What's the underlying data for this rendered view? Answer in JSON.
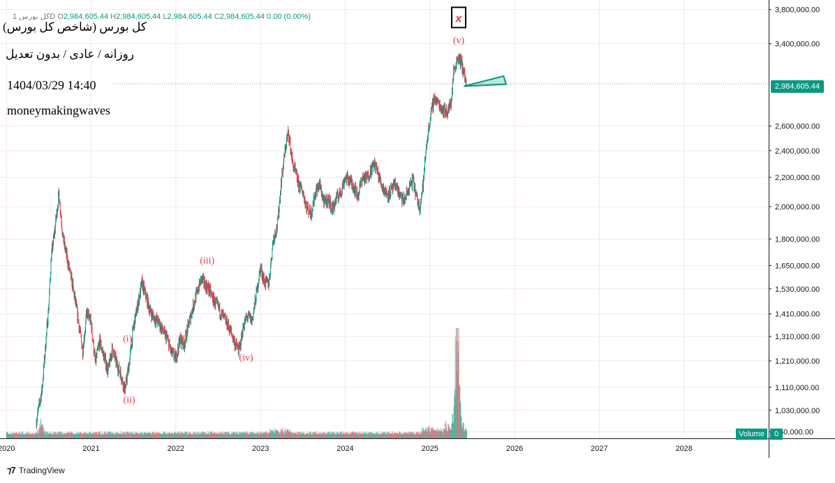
{
  "header": {
    "symbol": "کل بورس 1D",
    "o_label": "O",
    "o_value": "2,984,605.44",
    "h_label": "H",
    "h_value": "2,984,605.44",
    "l_label": "L",
    "l_value": "2,984,605.44",
    "c_label": "C",
    "c_value": "2,984,605.44",
    "change": "0.00 (0.00%)"
  },
  "overlay": {
    "title": "کل بورس (شاخص کل بورس)",
    "subtitle": "روزانه / عادی / بدون تعدیل",
    "datetime": "1404/03/29 14:40",
    "author": "moneymakingwaves"
  },
  "price_tag": "2,984,605.44",
  "volume_label": "Volume",
  "volume_value": "0",
  "footer": {
    "brand": "TradingView"
  },
  "colors": {
    "up": "#089981",
    "down": "#f23645",
    "wave_label": "#f23645",
    "triangle": "#089981"
  },
  "chart_data": {
    "type": "candlestick",
    "y_scale": "log",
    "ylim": [
      940000,
      3850000
    ],
    "y_ticks": [
      {
        "value": 3800000,
        "label": "3,800,000.00"
      },
      {
        "value": 3400000,
        "label": "3,400,000.00"
      },
      {
        "value": 2600000,
        "label": "2,600,000.00"
      },
      {
        "value": 2400000,
        "label": "2,400,000.00"
      },
      {
        "value": 2200000,
        "label": "2,200,000.00"
      },
      {
        "value": 2000000,
        "label": "2,000,000.00"
      },
      {
        "value": 1800000,
        "label": "1,800,000.00"
      },
      {
        "value": 1650000,
        "label": "1,650,000.00"
      },
      {
        "value": 1530000,
        "label": "1,530,000.00"
      },
      {
        "value": 1410000,
        "label": "1,410,000.00"
      },
      {
        "value": 1310000,
        "label": "1,310,000.00"
      },
      {
        "value": 1210000,
        "label": "1,210,000.00"
      },
      {
        "value": 1110000,
        "label": "1,110,000.00"
      },
      {
        "value": 1030000,
        "label": "1,030,000.00"
      },
      {
        "value": 960000,
        "label": "960,000.00"
      }
    ],
    "x_range": [
      2019.99,
      2029.0
    ],
    "x_ticks": [
      {
        "value": 2020.0,
        "label": "2020"
      },
      {
        "value": 2021.0,
        "label": "2021"
      },
      {
        "value": 2022.0,
        "label": "2022"
      },
      {
        "value": 2023.0,
        "label": "2023"
      },
      {
        "value": 2024.0,
        "label": "2024"
      },
      {
        "value": 2025.0,
        "label": "2025"
      },
      {
        "value": 2026.0,
        "label": "2026"
      },
      {
        "value": 2027.0,
        "label": "2027"
      },
      {
        "value": 2028.0,
        "label": "2028"
      }
    ],
    "last_price": 2984605.44,
    "price_path": [
      [
        2020.35,
        990000
      ],
      [
        2020.42,
        1100000
      ],
      [
        2020.5,
        1450000
      ],
      [
        2020.53,
        1700000
      ],
      [
        2020.57,
        1850000
      ],
      [
        2020.62,
        2090000
      ],
      [
        2020.67,
        1800000
      ],
      [
        2020.72,
        1680000
      ],
      [
        2020.78,
        1550000
      ],
      [
        2020.85,
        1380000
      ],
      [
        2020.9,
        1250000
      ],
      [
        2020.95,
        1420000
      ],
      [
        2021.0,
        1370000
      ],
      [
        2021.05,
        1200000
      ],
      [
        2021.1,
        1290000
      ],
      [
        2021.15,
        1230000
      ],
      [
        2021.2,
        1170000
      ],
      [
        2021.25,
        1260000
      ],
      [
        2021.3,
        1200000
      ],
      [
        2021.35,
        1160000
      ],
      [
        2021.4,
        1100000
      ],
      [
        2021.45,
        1200000
      ],
      [
        2021.5,
        1350000
      ],
      [
        2021.55,
        1450000
      ],
      [
        2021.6,
        1560000
      ],
      [
        2021.65,
        1490000
      ],
      [
        2021.7,
        1420000
      ],
      [
        2021.75,
        1390000
      ],
      [
        2021.8,
        1370000
      ],
      [
        2021.85,
        1330000
      ],
      [
        2021.9,
        1300000
      ],
      [
        2021.95,
        1240000
      ],
      [
        2022.0,
        1220000
      ],
      [
        2022.05,
        1300000
      ],
      [
        2022.1,
        1280000
      ],
      [
        2022.15,
        1360000
      ],
      [
        2022.2,
        1440000
      ],
      [
        2022.25,
        1510000
      ],
      [
        2022.3,
        1580000
      ],
      [
        2022.35,
        1550000
      ],
      [
        2022.4,
        1520000
      ],
      [
        2022.45,
        1470000
      ],
      [
        2022.5,
        1440000
      ],
      [
        2022.55,
        1400000
      ],
      [
        2022.6,
        1370000
      ],
      [
        2022.65,
        1330000
      ],
      [
        2022.7,
        1280000
      ],
      [
        2022.75,
        1250000
      ],
      [
        2022.8,
        1360000
      ],
      [
        2022.85,
        1400000
      ],
      [
        2022.9,
        1380000
      ],
      [
        2022.95,
        1500000
      ],
      [
        2023.0,
        1640000
      ],
      [
        2023.05,
        1560000
      ],
      [
        2023.1,
        1560000
      ],
      [
        2023.15,
        1800000
      ],
      [
        2023.2,
        1880000
      ],
      [
        2023.25,
        2200000
      ],
      [
        2023.3,
        2450000
      ],
      [
        2023.33,
        2550000
      ],
      [
        2023.38,
        2300000
      ],
      [
        2023.45,
        2150000
      ],
      [
        2023.5,
        2100000
      ],
      [
        2023.55,
        1990000
      ],
      [
        2023.6,
        1960000
      ],
      [
        2023.65,
        2100000
      ],
      [
        2023.7,
        2150000
      ],
      [
        2023.75,
        2020000
      ],
      [
        2023.8,
        2050000
      ],
      [
        2023.85,
        1980000
      ],
      [
        2023.9,
        2060000
      ],
      [
        2023.95,
        2100000
      ],
      [
        2024.0,
        2200000
      ],
      [
        2024.05,
        2180000
      ],
      [
        2024.1,
        2140000
      ],
      [
        2024.15,
        2070000
      ],
      [
        2024.2,
        2200000
      ],
      [
        2024.25,
        2190000
      ],
      [
        2024.3,
        2250000
      ],
      [
        2024.35,
        2300000
      ],
      [
        2024.4,
        2200000
      ],
      [
        2024.45,
        2120000
      ],
      [
        2024.5,
        2080000
      ],
      [
        2024.55,
        2110000
      ],
      [
        2024.6,
        2150000
      ],
      [
        2024.65,
        2060000
      ],
      [
        2024.7,
        2040000
      ],
      [
        2024.75,
        2120000
      ],
      [
        2024.8,
        2180000
      ],
      [
        2024.85,
        2040000
      ],
      [
        2024.88,
        2000000
      ],
      [
        2024.92,
        2150000
      ],
      [
        2024.96,
        2450000
      ],
      [
        2025.0,
        2650000
      ],
      [
        2025.05,
        2850000
      ],
      [
        2025.1,
        2800000
      ],
      [
        2025.15,
        2750000
      ],
      [
        2025.2,
        2720000
      ],
      [
        2025.25,
        2800000
      ],
      [
        2025.28,
        3100000
      ],
      [
        2025.33,
        3260000
      ],
      [
        2025.37,
        3200000
      ],
      [
        2025.4,
        3100000
      ],
      [
        2025.43,
        2985000
      ]
    ],
    "annotations": [
      {
        "label": "(i)",
        "x": 2021.43,
        "y": 1270000,
        "position": "above"
      },
      {
        "label": "(ii)",
        "x": 2021.45,
        "y": 1090000,
        "position": "below"
      },
      {
        "label": "(iii)",
        "x": 2022.37,
        "y": 1640000,
        "position": "above"
      },
      {
        "label": "(iv)",
        "x": 2022.83,
        "y": 1250000,
        "position": "below"
      },
      {
        "label": "(v)",
        "x": 2025.34,
        "y": 3360000,
        "position": "above"
      }
    ],
    "marker": {
      "label": "x",
      "x": 2025.34,
      "y": 3700000
    },
    "triangle": [
      [
        2025.4,
        2960000
      ],
      [
        2025.87,
        3060000
      ],
      [
        2025.9,
        2980000
      ]
    ],
    "volume": {
      "ylim": [
        0,
        8000000
      ],
      "spikes": [
        [
          2020.4,
          2.2
        ],
        [
          2020.42,
          1.6
        ],
        [
          2023.25,
          1.2
        ],
        [
          2024.95,
          1.4
        ],
        [
          2025.2,
          1.8
        ],
        [
          2025.3,
          6.0
        ],
        [
          2025.33,
          3.8
        ],
        [
          2025.36,
          2.8
        ]
      ]
    }
  }
}
